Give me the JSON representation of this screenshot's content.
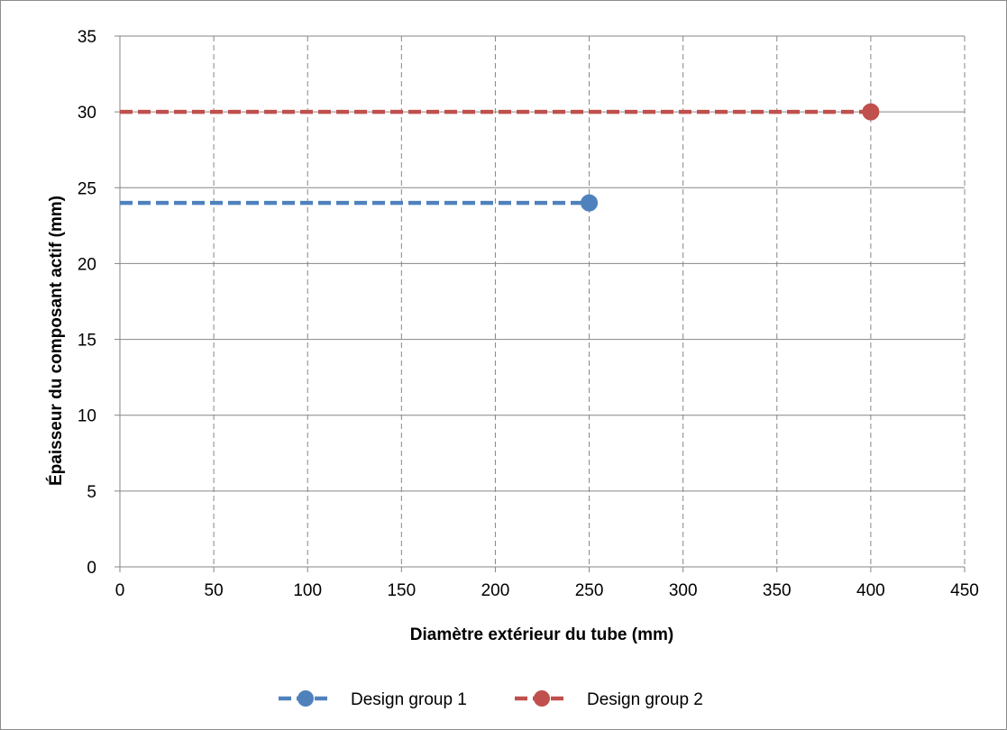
{
  "chart_data": {
    "type": "line",
    "xlabel": "Diamètre extérieur du tube (mm)",
    "ylabel": "Épaisseur du composant actif (mm)",
    "xlim": [
      0,
      450
    ],
    "ylim": [
      0,
      35
    ],
    "xticks": [
      0,
      50,
      100,
      150,
      200,
      250,
      300,
      350,
      400,
      450
    ],
    "yticks": [
      0,
      5,
      10,
      15,
      20,
      25,
      30,
      35
    ],
    "grid": {
      "horizontal": "solid",
      "vertical": "dashed"
    },
    "legend_position": "bottom",
    "series": [
      {
        "name": "Design group 1",
        "color": "#4f81bd",
        "line_style": "dashed",
        "x": [
          0,
          250
        ],
        "y": [
          24,
          24
        ],
        "marker_at_x": [
          250
        ]
      },
      {
        "name": "Design group 2",
        "color": "#c0504d",
        "line_style": "dashed",
        "x": [
          0,
          400
        ],
        "y": [
          30,
          30
        ],
        "marker_at_x": [
          400
        ]
      }
    ]
  }
}
